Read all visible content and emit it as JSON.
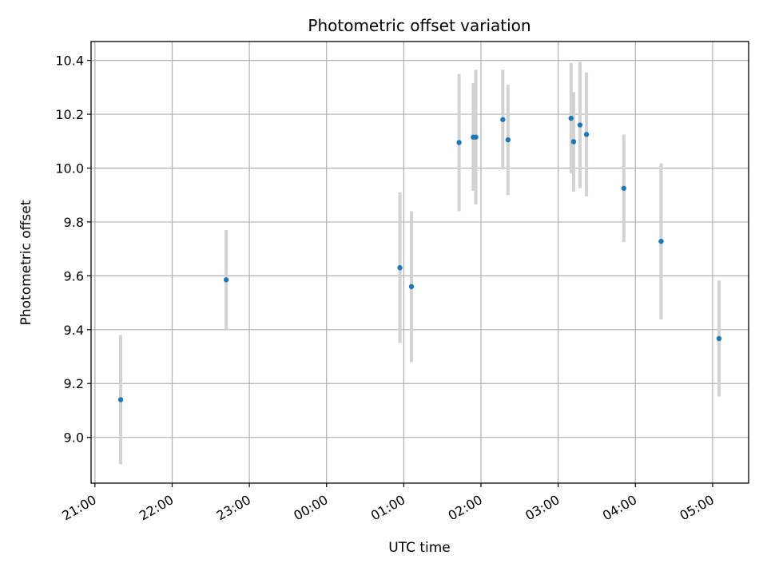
{
  "chart_data": {
    "type": "scatter",
    "title": "Photometric offset variation",
    "xlabel": "UTC time",
    "ylabel": "Photometric offset",
    "x_ticks": [
      "21:00",
      "22:00",
      "23:00",
      "00:00",
      "01:00",
      "02:00",
      "03:00",
      "04:00",
      "05:00"
    ],
    "y_ticks": [
      "9.0",
      "9.2",
      "9.4",
      "9.6",
      "9.8",
      "10.0",
      "10.2",
      "10.4"
    ],
    "xlim": [
      "20:57",
      "05:28"
    ],
    "ylim": [
      8.83,
      10.47
    ],
    "grid": true,
    "marker_color": "#1f77b4",
    "errorbar_color": "#d3d3d3",
    "points": [
      {
        "time": "21:20",
        "y": 9.14,
        "err": 0.24
      },
      {
        "time": "22:42",
        "y": 9.585,
        "err": 0.185
      },
      {
        "time": "00:57",
        "y": 9.63,
        "err": 0.28
      },
      {
        "time": "01:06",
        "y": 9.56,
        "err": 0.28
      },
      {
        "time": "01:43",
        "y": 10.095,
        "err": 0.255
      },
      {
        "time": "01:54",
        "y": 10.115,
        "err": 0.2
      },
      {
        "time": "01:56",
        "y": 10.115,
        "err": 0.25
      },
      {
        "time": "02:17",
        "y": 10.18,
        "err": 0.185
      },
      {
        "time": "02:21",
        "y": 10.105,
        "err": 0.205
      },
      {
        "time": "03:10",
        "y": 10.185,
        "err": 0.205
      },
      {
        "time": "03:12",
        "y": 10.098,
        "err": 0.185
      },
      {
        "time": "03:17",
        "y": 10.16,
        "err": 0.235
      },
      {
        "time": "03:22",
        "y": 10.125,
        "err": 0.23
      },
      {
        "time": "03:51",
        "y": 9.925,
        "err": 0.2
      },
      {
        "time": "04:20",
        "y": 9.728,
        "err": 0.29
      },
      {
        "time": "05:05",
        "y": 9.367,
        "err": 0.215
      }
    ]
  }
}
